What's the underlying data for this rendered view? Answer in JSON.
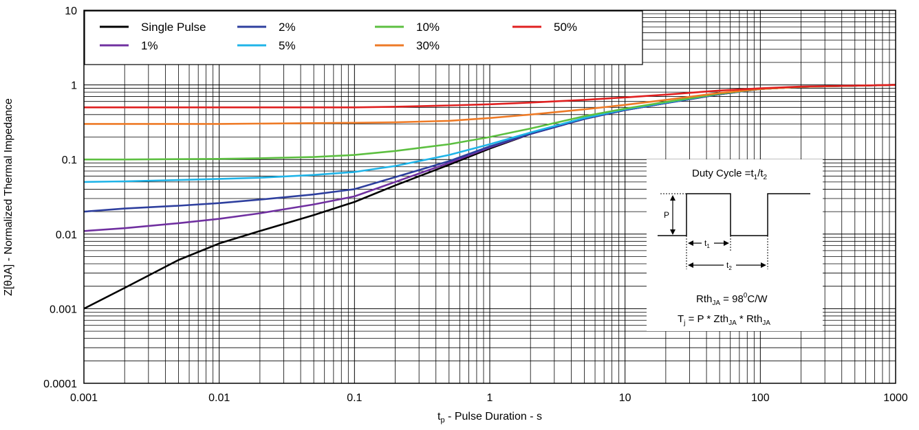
{
  "chart_data": {
    "type": "line",
    "xscale": "log",
    "yscale": "log",
    "xlim": [
      0.001,
      1000
    ],
    "ylim": [
      0.0001,
      10
    ],
    "grid": true,
    "legend_position": "top-left",
    "xlabel_main": "t",
    "xlabel_sub": "p",
    "xlabel_rest": " - Pulse Duration - s",
    "ylabel": "Z[θJA] - Normalized Thermal Impedance",
    "x_ticks": [
      "0.001",
      "0.01",
      "0.1",
      "1",
      "10",
      "100",
      "1000"
    ],
    "y_ticks": [
      "0.0001",
      "0.001",
      "0.01",
      "0.1",
      "1",
      "10"
    ],
    "series": [
      {
        "name": "Single Pulse",
        "color": "#000000",
        "x": [
          0.001,
          0.002,
          0.005,
          0.01,
          0.02,
          0.05,
          0.1,
          0.2,
          0.5,
          1,
          2,
          5,
          10,
          20,
          50,
          100,
          200,
          1000
        ],
        "y": [
          0.001,
          0.0019,
          0.0045,
          0.0075,
          0.011,
          0.018,
          0.027,
          0.045,
          0.085,
          0.14,
          0.22,
          0.35,
          0.46,
          0.57,
          0.75,
          0.88,
          0.94,
          1.0
        ]
      },
      {
        "name": "1%",
        "color": "#7030a0",
        "x": [
          0.001,
          0.002,
          0.005,
          0.01,
          0.02,
          0.05,
          0.1,
          0.2,
          0.5,
          1,
          2,
          5,
          10,
          20,
          50,
          100,
          200,
          1000
        ],
        "y": [
          0.011,
          0.012,
          0.014,
          0.016,
          0.019,
          0.025,
          0.032,
          0.05,
          0.09,
          0.145,
          0.22,
          0.35,
          0.46,
          0.57,
          0.75,
          0.88,
          0.94,
          1.0
        ]
      },
      {
        "name": "2%",
        "color": "#2e3f9e",
        "x": [
          0.001,
          0.002,
          0.005,
          0.01,
          0.02,
          0.05,
          0.1,
          0.2,
          0.5,
          1,
          2,
          5,
          10,
          20,
          50,
          100,
          200,
          1000
        ],
        "y": [
          0.02,
          0.022,
          0.024,
          0.026,
          0.029,
          0.034,
          0.04,
          0.058,
          0.095,
          0.15,
          0.22,
          0.35,
          0.46,
          0.57,
          0.75,
          0.88,
          0.94,
          1.0
        ]
      },
      {
        "name": "5%",
        "color": "#1fb4e8",
        "x": [
          0.001,
          0.002,
          0.005,
          0.01,
          0.02,
          0.05,
          0.1,
          0.2,
          0.5,
          1,
          2,
          5,
          10,
          20,
          50,
          100,
          200,
          1000
        ],
        "y": [
          0.05,
          0.051,
          0.053,
          0.055,
          0.057,
          0.062,
          0.068,
          0.082,
          0.115,
          0.16,
          0.23,
          0.36,
          0.47,
          0.58,
          0.76,
          0.88,
          0.94,
          1.0
        ]
      },
      {
        "name": "10%",
        "color": "#5cbf40",
        "x": [
          0.001,
          0.002,
          0.005,
          0.01,
          0.02,
          0.05,
          0.1,
          0.2,
          0.5,
          1,
          2,
          5,
          10,
          20,
          50,
          100,
          200,
          1000
        ],
        "y": [
          0.1,
          0.1,
          0.101,
          0.102,
          0.104,
          0.108,
          0.115,
          0.13,
          0.16,
          0.2,
          0.26,
          0.38,
          0.48,
          0.59,
          0.76,
          0.88,
          0.94,
          1.0
        ]
      },
      {
        "name": "30%",
        "color": "#ee7a26",
        "x": [
          0.001,
          0.01,
          0.1,
          0.2,
          0.5,
          1,
          2,
          5,
          10,
          20,
          50,
          100,
          200,
          1000
        ],
        "y": [
          0.3,
          0.3,
          0.31,
          0.315,
          0.33,
          0.36,
          0.4,
          0.47,
          0.54,
          0.63,
          0.78,
          0.88,
          0.94,
          1.0
        ]
      },
      {
        "name": "50%",
        "color": "#e02020",
        "x": [
          0.001,
          0.01,
          0.1,
          0.2,
          0.5,
          1,
          2,
          5,
          10,
          20,
          50,
          100,
          200,
          1000
        ],
        "y": [
          0.5,
          0.5,
          0.5,
          0.51,
          0.53,
          0.55,
          0.58,
          0.63,
          0.68,
          0.74,
          0.84,
          0.9,
          0.95,
          1.0
        ]
      }
    ]
  },
  "legend": {
    "items": [
      {
        "label": "Single Pulse",
        "color": "#000000"
      },
      {
        "label": "2%",
        "color": "#2e3f9e"
      },
      {
        "label": "10%",
        "color": "#5cbf40"
      },
      {
        "label": "50%",
        "color": "#e02020"
      },
      {
        "label": "1%",
        "color": "#7030a0"
      },
      {
        "label": "5%",
        "color": "#1fb4e8"
      },
      {
        "label": "30%",
        "color": "#ee7a26"
      }
    ]
  },
  "inset": {
    "duty_cycle_prefix": "Duty Cycle =t",
    "duty_sub1": "1",
    "duty_slash": "/t",
    "duty_sub2": "2",
    "p_label": "P",
    "t1_label": "t",
    "t1_sub": "1",
    "t2_label": "t",
    "t2_sub": "2",
    "rth_prefix": "Rth",
    "rth_sub": "JA",
    "rth_eq": " = 98",
    "rth_sup": "0",
    "rth_unit": "C/W",
    "tj_prefix": "T",
    "tj_sub": "j",
    "tj_mid1": " = P * Zth",
    "tj_sub2": "JA",
    "tj_mid2": " * Rth",
    "tj_sub3": "JA"
  }
}
